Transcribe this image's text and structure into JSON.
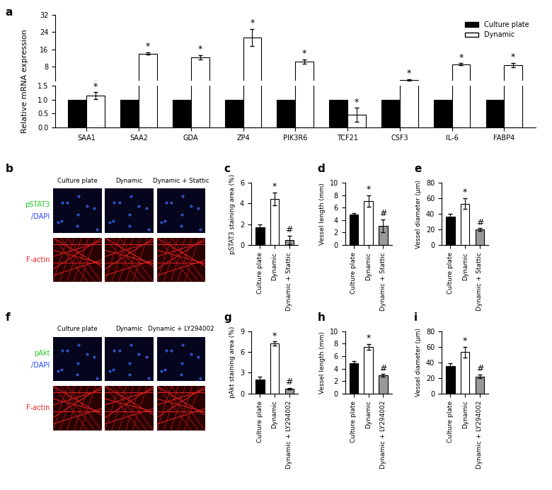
{
  "chart_data": [
    {
      "panel": "a",
      "type": "bar",
      "categories": [
        "SAA1",
        "SAA2",
        "GDA",
        "ZP4",
        "PIK3R6",
        "TCF21",
        "CSF3",
        "IL-6",
        "FABP4"
      ],
      "y_label": "Relative mRNA expression",
      "legend": "upper right",
      "series": [
        {
          "name": "Culture plate",
          "color": "#000000",
          "values": [
            1,
            1,
            1,
            1,
            1,
            1,
            1,
            1,
            1
          ]
        },
        {
          "name": "Dynamic",
          "color": "#ffffff",
          "values": [
            1.15,
            14,
            12.2,
            21.5,
            10.3,
            0.45,
            2.0,
            9.2,
            8.8
          ],
          "errors": [
            0.12,
            0.5,
            1.0,
            4.0,
            1.0,
            0.25,
            0.3,
            0.4,
            1.0
          ],
          "annotations": [
            "*",
            "*",
            "*",
            "*",
            "*",
            "*",
            "*",
            "*",
            "*"
          ]
        }
      ],
      "y_segments": [
        {
          "ylim": [
            0,
            1.5
          ],
          "yticks": [
            {
              "value": 0,
              "label": "0.0"
            },
            {
              "value": 0.5,
              "label": "0.5"
            },
            {
              "value": 1,
              "label": "1.0"
            },
            {
              "value": 1.5,
              "label": "1.5"
            }
          ]
        },
        {
          "ylim": [
            1.5,
            32
          ],
          "yticks": [
            8,
            16,
            24,
            32
          ]
        }
      ]
    },
    {
      "panel": "c",
      "type": "bar",
      "categories": [
        "Culture plate",
        "Dynamic",
        "Dynamic + Stattic"
      ],
      "y_label": "pSTAT3 staining area (%)",
      "values": [
        1.7,
        4.45,
        0.5
      ],
      "errors": [
        0.25,
        0.6,
        0.4
      ],
      "colors": [
        "#000000",
        "#ffffff",
        "#999999"
      ],
      "annotations": [
        null,
        "*",
        "#"
      ],
      "ylim": [
        0,
        6
      ],
      "yticks": [
        0,
        2,
        4,
        6
      ]
    },
    {
      "panel": "d",
      "type": "bar",
      "categories": [
        "Culture plate",
        "Dynamic",
        "Dynamic + Stattic"
      ],
      "y_label": "Vessel length (mm)",
      "values": [
        4.9,
        7.1,
        3.1
      ],
      "errors": [
        0.25,
        0.9,
        1.0
      ],
      "colors": [
        "#000000",
        "#ffffff",
        "#999999"
      ],
      "annotations": [
        null,
        "*",
        "#"
      ],
      "ylim": [
        0,
        10
      ],
      "yticks": [
        0,
        2,
        4,
        6,
        8,
        10
      ]
    },
    {
      "panel": "e",
      "type": "bar",
      "categories": [
        "Culture plate",
        "Dynamic",
        "Dynamic + Stattic"
      ],
      "y_label": "Vessel diameter (μm)",
      "values": [
        36,
        53,
        20
      ],
      "errors": [
        4,
        7,
        1.5
      ],
      "colors": [
        "#000000",
        "#ffffff",
        "#999999"
      ],
      "annotations": [
        null,
        "*",
        "#"
      ],
      "ylim": [
        0,
        80
      ],
      "yticks": [
        0,
        20,
        40,
        60,
        80
      ]
    },
    {
      "panel": "g",
      "type": "bar",
      "categories": [
        "Culture plate",
        "Dynamic",
        "Dynamic + LY294002"
      ],
      "y_label": "pAkt staining area (%)",
      "values": [
        2.0,
        7.2,
        0.7
      ],
      "errors": [
        0.4,
        0.3,
        0.1
      ],
      "colors": [
        "#000000",
        "#ffffff",
        "#999999"
      ],
      "annotations": [
        null,
        "*",
        "#"
      ],
      "ylim": [
        0,
        9
      ],
      "yticks": [
        0,
        3,
        6,
        9
      ]
    },
    {
      "panel": "h",
      "type": "bar",
      "categories": [
        "Culture plate",
        "Dynamic",
        "Dynamic + LY294002"
      ],
      "y_label": "Vessel length (mm)",
      "values": [
        4.9,
        7.5,
        2.9
      ],
      "errors": [
        0.25,
        0.45,
        0.2
      ],
      "colors": [
        "#000000",
        "#ffffff",
        "#999999"
      ],
      "annotations": [
        null,
        "*",
        "#"
      ],
      "ylim": [
        0,
        10
      ],
      "yticks": [
        0,
        2,
        4,
        6,
        8,
        10
      ]
    },
    {
      "panel": "i",
      "type": "bar",
      "categories": [
        "Culture plate",
        "Dynamic",
        "Dynamic + LY294002"
      ],
      "y_label": "Vessel diameter (μm)",
      "values": [
        35,
        53,
        22
      ],
      "errors": [
        4,
        7,
        2.5
      ],
      "colors": [
        "#000000",
        "#ffffff",
        "#999999"
      ],
      "annotations": [
        null,
        "*",
        "#"
      ],
      "ylim": [
        0,
        80
      ],
      "yticks": [
        0,
        20,
        40,
        60,
        80
      ]
    }
  ],
  "image_panels": [
    {
      "panel": "b",
      "columns": [
        "Culture plate",
        "Dynamic",
        "Dynamic + Stattic"
      ],
      "rows": [
        {
          "labels": [
            {
              "text": "pSTAT3",
              "color": "#22cc22"
            },
            {
              "text": "/DAPI",
              "color": "#2244ff"
            }
          ]
        },
        {
          "labels": [
            {
              "text": "F-actin",
              "color": "#ee2222"
            }
          ]
        }
      ]
    },
    {
      "panel": "f",
      "columns": [
        "Culture plate",
        "Dynamic",
        "Dynamic + LY294002"
      ],
      "rows": [
        {
          "labels": [
            {
              "text": "pAkt",
              "color": "#22cc22"
            },
            {
              "text": "/DAPI",
              "color": "#2244ff"
            }
          ]
        },
        {
          "labels": [
            {
              "text": "F-actin",
              "color": "#ee2222"
            }
          ]
        }
      ]
    }
  ]
}
